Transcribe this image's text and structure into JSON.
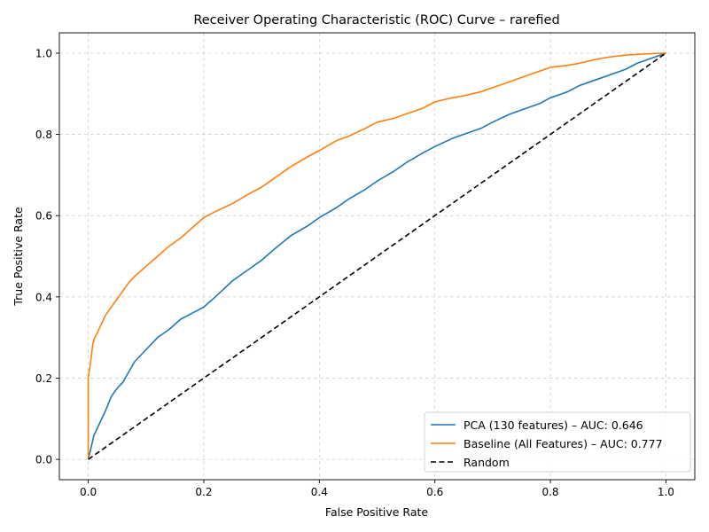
{
  "chart_data": {
    "type": "line",
    "title": "Receiver Operating Characteristic (ROC) Curve – rarefied",
    "xlabel": "False Positive Rate",
    "ylabel": "True Positive Rate",
    "xlim": [
      -0.05,
      1.05
    ],
    "ylim": [
      -0.05,
      1.05
    ],
    "xticks": [
      "0.0",
      "0.2",
      "0.4",
      "0.6",
      "0.8",
      "1.0"
    ],
    "yticks": [
      "0.0",
      "0.2",
      "0.4",
      "0.6",
      "0.8",
      "1.0"
    ],
    "grid": true,
    "legend_position": "lower-right",
    "series": [
      {
        "name": "PCA (130 features) – AUC: 0.646",
        "color": "#1f77b4",
        "style": "solid",
        "x": [
          0,
          0.005,
          0.01,
          0.02,
          0.03,
          0.04,
          0.05,
          0.06,
          0.08,
          0.1,
          0.12,
          0.14,
          0.16,
          0.18,
          0.2,
          0.22,
          0.25,
          0.28,
          0.3,
          0.32,
          0.35,
          0.38,
          0.4,
          0.43,
          0.45,
          0.48,
          0.5,
          0.53,
          0.55,
          0.58,
          0.6,
          0.63,
          0.65,
          0.68,
          0.7,
          0.73,
          0.75,
          0.78,
          0.8,
          0.83,
          0.85,
          0.88,
          0.9,
          0.93,
          0.95,
          0.98,
          1.0
        ],
        "y": [
          0,
          0.03,
          0.06,
          0.09,
          0.12,
          0.155,
          0.175,
          0.19,
          0.24,
          0.27,
          0.3,
          0.32,
          0.345,
          0.36,
          0.375,
          0.4,
          0.44,
          0.47,
          0.49,
          0.515,
          0.55,
          0.575,
          0.595,
          0.62,
          0.64,
          0.665,
          0.685,
          0.71,
          0.73,
          0.755,
          0.77,
          0.79,
          0.8,
          0.815,
          0.83,
          0.85,
          0.86,
          0.875,
          0.89,
          0.905,
          0.92,
          0.935,
          0.945,
          0.96,
          0.975,
          0.99,
          1.0
        ]
      },
      {
        "name": "Baseline (All Features) – AUC: 0.777",
        "color": "#ff7f0e",
        "style": "solid",
        "x": [
          0,
          0.0,
          0.002,
          0.005,
          0.008,
          0.01,
          0.015,
          0.02,
          0.03,
          0.04,
          0.05,
          0.06,
          0.07,
          0.08,
          0.1,
          0.12,
          0.14,
          0.16,
          0.18,
          0.2,
          0.22,
          0.25,
          0.28,
          0.3,
          0.32,
          0.35,
          0.38,
          0.4,
          0.43,
          0.45,
          0.48,
          0.5,
          0.53,
          0.55,
          0.58,
          0.6,
          0.63,
          0.65,
          0.68,
          0.7,
          0.73,
          0.75,
          0.78,
          0.8,
          0.83,
          0.85,
          0.88,
          0.9,
          0.93,
          0.95,
          0.98,
          1.0
        ],
        "y": [
          0,
          0.2,
          0.22,
          0.25,
          0.285,
          0.295,
          0.31,
          0.325,
          0.355,
          0.375,
          0.395,
          0.415,
          0.435,
          0.45,
          0.475,
          0.5,
          0.525,
          0.545,
          0.57,
          0.595,
          0.61,
          0.63,
          0.655,
          0.67,
          0.69,
          0.72,
          0.745,
          0.76,
          0.785,
          0.795,
          0.815,
          0.83,
          0.84,
          0.85,
          0.865,
          0.88,
          0.89,
          0.895,
          0.905,
          0.915,
          0.93,
          0.94,
          0.955,
          0.965,
          0.97,
          0.975,
          0.985,
          0.99,
          0.995,
          0.997,
          0.999,
          1.0
        ]
      },
      {
        "name": "Random",
        "color": "#000000",
        "style": "dashed",
        "x": [
          0,
          1
        ],
        "y": [
          0,
          1
        ]
      }
    ]
  }
}
